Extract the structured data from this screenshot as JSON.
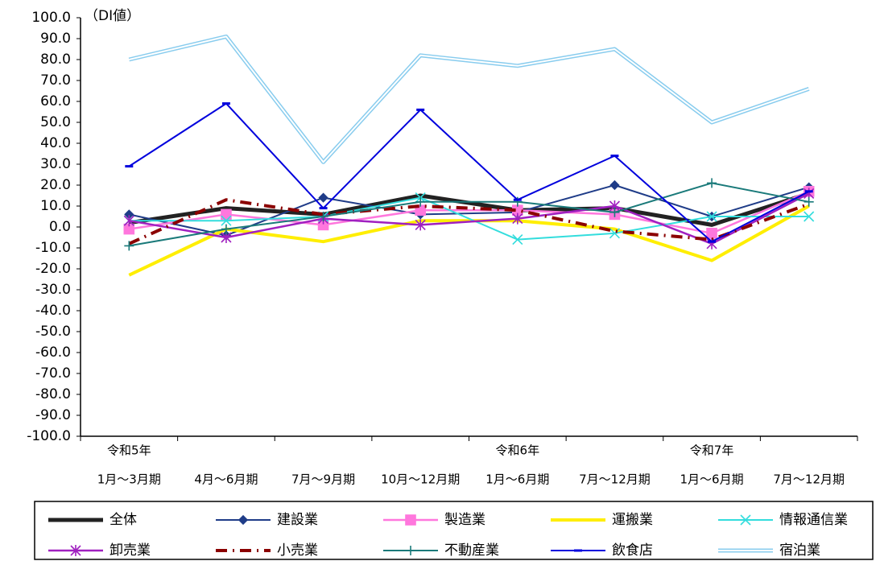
{
  "chart_data": {
    "type": "line",
    "y_unit_label": "（DI値）",
    "categories": [
      "1月～3月期",
      "4月～6月期",
      "7月～9月期",
      "10月～12月期",
      "1月～6月期",
      "7月～12月期",
      "1月～6月期",
      "7月～12月期"
    ],
    "year_labels": [
      "令和5年",
      null,
      null,
      null,
      "令和6年",
      null,
      "令和7年",
      null
    ],
    "ylim": [
      -100,
      100
    ],
    "yticks": [
      {
        "value": 100,
        "label": "100.0"
      },
      {
        "value": 90,
        "label": "90.0"
      },
      {
        "value": 80,
        "label": "80.0"
      },
      {
        "value": 70,
        "label": "70.0"
      },
      {
        "value": 60,
        "label": "60.0"
      },
      {
        "value": 50,
        "label": "50.0"
      },
      {
        "value": 40,
        "label": "40.0"
      },
      {
        "value": 30,
        "label": "30.0"
      },
      {
        "value": 20,
        "label": "20.0"
      },
      {
        "value": 10,
        "label": "10.0"
      },
      {
        "value": 0,
        "label": "0.0"
      },
      {
        "value": -10,
        "label": "-10.0"
      },
      {
        "value": -20,
        "label": "-20.0"
      },
      {
        "value": -30,
        "label": "-30.0"
      },
      {
        "value": -40,
        "label": "-40.0"
      },
      {
        "value": -50,
        "label": "-50.0"
      },
      {
        "value": -60,
        "label": "-60.0"
      },
      {
        "value": -70,
        "label": "-70.0"
      },
      {
        "value": -80,
        "label": "-80.0"
      },
      {
        "value": -90,
        "label": "-90.0"
      },
      {
        "value": -100,
        "label": "-100.0"
      }
    ],
    "grid": false,
    "legend": "bottom",
    "series": [
      {
        "name": "全体",
        "color": "#222222",
        "width": 5,
        "marker": "none",
        "line_style": "solid",
        "values": [
          2,
          9,
          6,
          15,
          8,
          9,
          1,
          16
        ]
      },
      {
        "name": "建設業",
        "color": "#1f3c88",
        "width": 2,
        "marker": "diamond",
        "line_style": "solid",
        "values": [
          6,
          -4,
          14,
          6,
          7,
          20,
          5,
          19
        ]
      },
      {
        "name": "製造業",
        "color": "#ff77dd",
        "width": 2.5,
        "marker": "square",
        "line_style": "solid",
        "values": [
          -1,
          6,
          1,
          8,
          8,
          6,
          -3,
          17
        ]
      },
      {
        "name": "運搬業",
        "color": "#ffee00",
        "width": 4,
        "marker": "none",
        "line_style": "solid",
        "values": [
          -23,
          -1,
          -7,
          3,
          3,
          -1,
          -16,
          10
        ]
      },
      {
        "name": "情報通信業",
        "color": "#33dddd",
        "width": 2,
        "marker": "x",
        "line_style": "solid",
        "values": [
          3,
          3,
          5,
          14,
          -6,
          -3,
          5,
          5
        ]
      },
      {
        "name": "卸売業",
        "color": "#a020c0",
        "width": 2.5,
        "marker": "star",
        "line_style": "solid",
        "values": [
          3,
          -5,
          4,
          1,
          4,
          10,
          -8,
          16
        ]
      },
      {
        "name": "小売業",
        "color": "#8b0000",
        "width": 4,
        "marker": "none",
        "line_style": "dashdot",
        "values": [
          -8,
          13,
          6,
          10,
          8,
          -2,
          -6,
          11
        ]
      },
      {
        "name": "不動産業",
        "color": "#1a7a7a",
        "width": 2,
        "marker": "plus",
        "line_style": "solid",
        "values": [
          -9,
          -1,
          5,
          12,
          12,
          7,
          21,
          12
        ]
      },
      {
        "name": "飲食店",
        "color": "#0000dd",
        "width": 2,
        "marker": "dash",
        "line_style": "solid",
        "values": [
          29,
          59,
          9,
          56,
          13,
          34,
          -7,
          17
        ]
      },
      {
        "name": "宿泊業",
        "color": "#88ccee",
        "width": 5,
        "marker": "none",
        "line_style": "double",
        "values": [
          80,
          91,
          31,
          82,
          77,
          85,
          50,
          66
        ]
      }
    ]
  }
}
